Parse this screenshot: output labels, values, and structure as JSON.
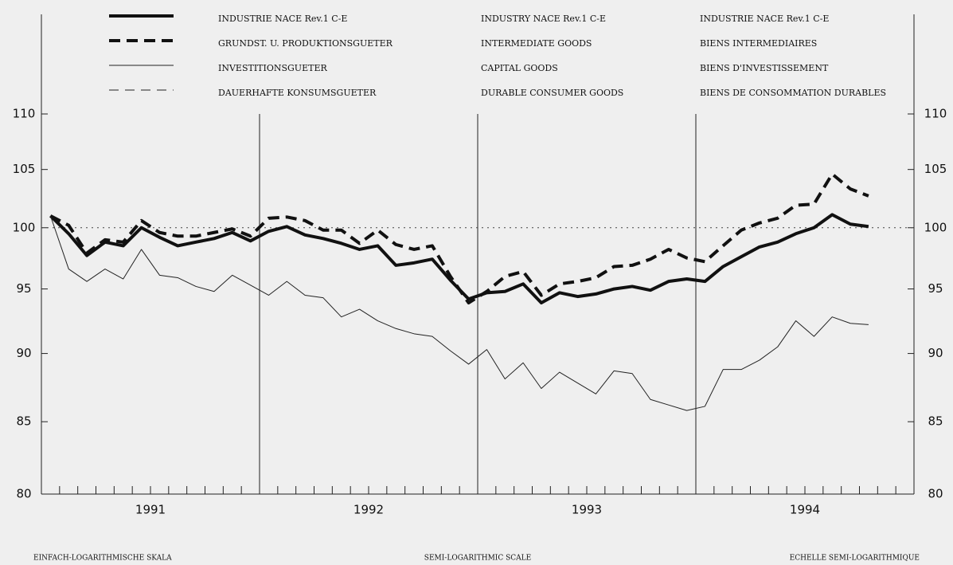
{
  "chart_data": {
    "type": "line",
    "yscale": "log",
    "ylim": [
      80,
      110
    ],
    "yticks": [
      80,
      85,
      90,
      95,
      100,
      105,
      110
    ],
    "reference_line": 100,
    "categories": [
      null,
      null,
      null,
      null,
      null,
      null,
      null,
      null,
      null,
      null,
      null,
      null,
      null,
      null,
      null,
      null,
      null,
      null,
      null,
      null,
      null,
      null,
      null,
      null,
      null,
      null,
      null,
      null,
      null,
      null,
      null,
      null,
      null,
      null,
      null,
      null,
      null,
      null,
      null,
      null,
      null,
      null,
      null,
      null,
      null,
      null
    ],
    "years": [
      "1991",
      "1992",
      "1993",
      "1994"
    ],
    "legend_en": [
      "INDUSTRY NACE Rev.1 C-E",
      "INTERMEDIATE GOODS",
      "CAPITAL GOODS",
      "DURABLE CONSUMER GOODS"
    ],
    "legend_fr": [
      "INDUSTRIE NACE Rev.1 C-E",
      "BIENS INTERMEDIAIRES",
      "BIENS D'INVESTISSEMENT",
      "BIENS DE CONSOMMATION DURABLES"
    ],
    "footer": [
      "EINFACH-LOGARITHMISCHE SKALA",
      "SEMI-LOGARITHMIC SCALE",
      "ECHELLE SEMI-LOGARITHMIQUE"
    ],
    "series": [
      {
        "name": "INDUSTRIE NACE Rev.1 C-E",
        "color": "#111111",
        "width": 4,
        "dash": "none",
        "values": [
          101,
          99.5,
          97.7,
          98.8,
          98.5,
          100,
          99.2,
          98.5,
          98.8,
          99.1,
          99.6,
          98.9,
          99.7,
          100.1,
          99.4,
          99.1,
          98.7,
          98.2,
          98.5,
          96.9,
          97.1,
          97.4,
          95.7,
          94.2,
          94.7,
          94.8,
          95.4,
          93.9,
          94.7,
          94.4,
          94.6,
          95.0,
          95.2,
          94.9,
          95.6,
          95.8,
          95.6,
          96.8,
          97.6,
          98.4,
          98.8,
          99.5,
          100.0,
          101.1,
          100.3,
          100.1
        ]
      },
      {
        "name": "GRUNDST. U. PRODUKTIONSGUETER",
        "color": "#111111",
        "width": 4,
        "dash": "14 8",
        "values": [
          101,
          100.2,
          97.9,
          99,
          98.8,
          100.6,
          99.6,
          99.3,
          99.3,
          99.6,
          99.9,
          99.3,
          100.8,
          100.9,
          100.6,
          99.8,
          99.8,
          98.7,
          99.8,
          98.6,
          98.2,
          98.5,
          96,
          93.9,
          94.8,
          96,
          96.4,
          94.5,
          95.4,
          95.6,
          95.9,
          96.8,
          96.9,
          97.4,
          98.2,
          97.5,
          97.2,
          98.5,
          99.8,
          100.4,
          100.8,
          101.9,
          102.0,
          104.6,
          103.3,
          102.7
        ]
      },
      {
        "name": "INVESTITIONSGUETER",
        "color": "#222222",
        "width": 1,
        "dash": "none",
        "values": [
          101,
          96.6,
          95.6,
          96.6,
          95.8,
          98.2,
          96.1,
          95.9,
          95.2,
          94.8,
          96.1,
          95.3,
          94.5,
          95.6,
          94.5,
          94.3,
          92.8,
          93.4,
          92.5,
          91.9,
          91.5,
          91.3,
          90.2,
          89.2,
          90.3,
          88.1,
          89.3,
          87.4,
          88.6,
          87.8,
          87.0,
          88.7,
          88.5,
          86.6,
          86.2,
          85.8,
          86.1,
          88.8,
          88.8,
          89.5,
          90.5,
          92.5,
          91.3,
          92.8,
          92.3,
          92.2
        ]
      },
      {
        "name": "DAUERHAFTE KONSUMSGUETER",
        "color": "#222222",
        "width": 1,
        "dash": "12 8",
        "values": [
          null,
          null,
          null,
          null,
          null,
          null,
          null,
          null,
          null,
          null,
          null,
          null,
          null,
          null,
          null,
          null,
          null,
          null,
          null,
          null,
          null,
          null,
          null,
          null,
          null,
          null,
          null,
          null,
          null,
          null,
          null,
          null,
          null,
          null,
          null,
          null,
          null,
          null,
          null,
          null,
          null,
          null,
          null,
          null,
          null,
          null
        ]
      }
    ]
  }
}
